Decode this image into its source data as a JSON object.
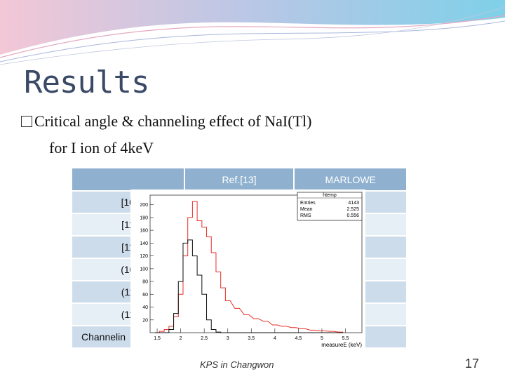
{
  "slide": {
    "title": "Results",
    "bullet_line1": "Critical angle & channeling effect of NaI(Tl)",
    "bullet_line2": "for I ion of 4keV",
    "footer": "KPS in Changwon",
    "page_number": "17"
  },
  "table": {
    "headers": [
      "",
      "Ref.[13]",
      "MARLOWE"
    ],
    "row_labels": [
      "[10",
      "[11",
      "[11",
      "(10",
      "(11",
      "(11",
      "Channelin"
    ]
  },
  "histogram": {
    "stats_box": {
      "name": "htemp",
      "entries_label": "Entries",
      "entries": "4143",
      "mean_label": "Mean",
      "mean": "2.525",
      "rms_label": "RMS",
      "rms": "0.556"
    },
    "xlabel": "measureE (keV)",
    "x_ticks": [
      "1.5",
      "2",
      "2.5",
      "3",
      "3.5",
      "4",
      "4.5",
      "5",
      "5.5"
    ],
    "y_ticks": [
      "20",
      "40",
      "60",
      "80",
      "100",
      "120",
      "140",
      "160",
      "180",
      "200"
    ],
    "colors": {
      "red": "#e8302a",
      "black": "#111111"
    }
  },
  "chart_data": {
    "type": "line",
    "xlabel": "measureE (keV)",
    "ylabel": "",
    "xlim": [
      1.35,
      5.85
    ],
    "ylim": [
      0,
      215
    ],
    "x": [
      1.5,
      1.6,
      1.7,
      1.8,
      1.9,
      2.0,
      2.1,
      2.2,
      2.3,
      2.4,
      2.5,
      2.6,
      2.7,
      2.8,
      2.9,
      3.0,
      3.2,
      3.4,
      3.6,
      3.8,
      4.0,
      4.2,
      4.4,
      4.6,
      4.8,
      5.0,
      5.2,
      5.4
    ],
    "series": [
      {
        "color": "#e8302a",
        "values": [
          0,
          2,
          5,
          10,
          25,
          60,
          120,
          180,
          205,
          175,
          165,
          150,
          125,
          95,
          70,
          50,
          38,
          28,
          22,
          18,
          12,
          10,
          8,
          6,
          4,
          3,
          2,
          1
        ]
      },
      {
        "color": "#111111",
        "values": [
          0,
          0,
          0,
          5,
          30,
          80,
          140,
          145,
          120,
          90,
          60,
          20,
          5,
          1,
          0,
          0,
          0,
          0,
          0,
          0,
          0,
          0,
          0,
          0,
          0,
          0,
          0,
          0
        ]
      }
    ]
  }
}
